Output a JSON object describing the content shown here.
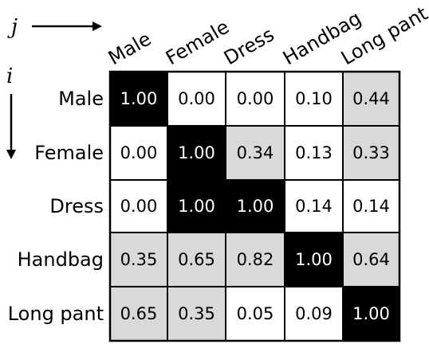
{
  "axis": {
    "column_letter": "j",
    "row_letter": "i"
  },
  "labels": [
    "Male",
    "Female",
    "Dress",
    "Handbag",
    "Long pant"
  ],
  "matrix": [
    [
      "1.00",
      "0.00",
      "0.00",
      "0.10",
      "0.44"
    ],
    [
      "0.00",
      "1.00",
      "0.34",
      "0.13",
      "0.33"
    ],
    [
      "0.00",
      "1.00",
      "1.00",
      "0.14",
      "0.14"
    ],
    [
      "0.35",
      "0.65",
      "0.82",
      "1.00",
      "0.64"
    ],
    [
      "0.65",
      "0.35",
      "0.05",
      "0.09",
      "1.00"
    ]
  ],
  "colors": {
    "high": "#000000",
    "mid": "#d9d9d9",
    "low": "#ffffff",
    "text_on_high": "#ffffff",
    "text_on_other": "#000000",
    "grid": "#000000"
  }
}
